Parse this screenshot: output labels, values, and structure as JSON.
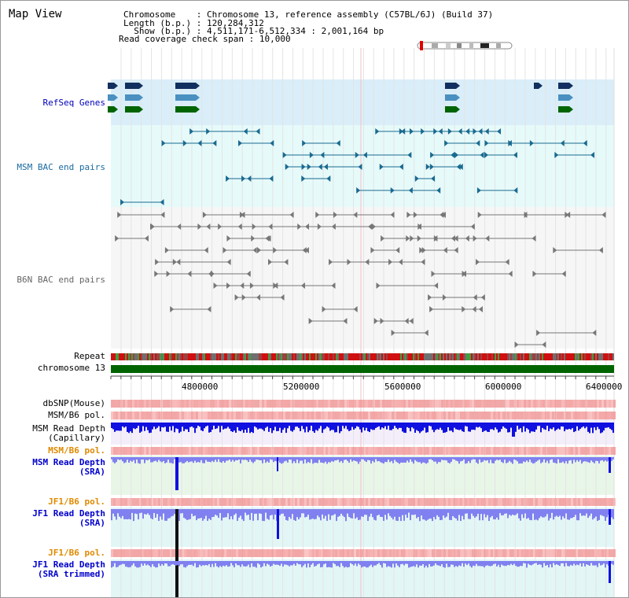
{
  "title": "Map View",
  "info": {
    "chromosome_label": "Chromosome",
    "chromosome_value": "Chromosome 13, reference assembly (C57BL/6J) (Build 37)",
    "length_label": "Length (b.p.)",
    "length_value": "120,284,312",
    "show_label": "Show (b.p.)",
    "show_value": "4,511,171-6,512,334 : 2,001,164 bp",
    "coverage_label": "Read coverage check span",
    "coverage_value": "10,000"
  },
  "tracks": {
    "refseq": "RefSeq Genes",
    "msm_bac": "MSM BAC end pairs",
    "b6n_bac": "B6N BAC end pairs",
    "repeat": "Repeat",
    "chromosome": "chromosome 13",
    "dbsnp": "dbSNP(Mouse)",
    "msm_b6_pol": "MSM/B6 pol.",
    "msm_depth_cap_1": "MSM Read Depth",
    "msm_depth_cap_2": "(Capillary)",
    "msm_b6_pol_2": "MSM/B6 pol.",
    "msm_depth_sra_1": "MSM Read Depth",
    "msm_depth_sra_2": "(SRA)",
    "jf1_b6_pol": "JF1/B6 pol.",
    "jf1_depth_sra_1": "JF1 Read Depth",
    "jf1_depth_sra_2": "(SRA)",
    "jf1_b6_pol_2": "JF1/B6 pol.",
    "jf1_depth_trim_1": "JF1 Read Depth",
    "jf1_depth_trim_2": "(SRA trimmed)"
  },
  "scale_ticks": [
    "4800000",
    "5200000",
    "5600000",
    "6000000",
    "6400000"
  ],
  "colors": {
    "refseq_bg": "#d9eef9",
    "msm_bg": "#e6fafa",
    "b6n_bg": "#f6f6f6",
    "gene_dark": "#12305f",
    "gene_mid": "#4a90c0",
    "gene_green": "#006400",
    "chromosome": "#006400",
    "depth_blue": "#1010e0",
    "depth_light": "#8080f0",
    "pol_red": "#f06060"
  }
}
